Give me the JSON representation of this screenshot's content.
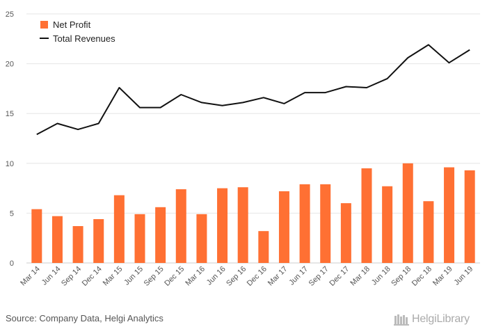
{
  "chart_data": {
    "type": "bar+line",
    "categories": [
      "Mar 14",
      "Jun 14",
      "Sep 14",
      "Dec 14",
      "Mar 15",
      "Jun 15",
      "Sep 15",
      "Dec 15",
      "Mar 16",
      "Jun 16",
      "Sep 16",
      "Dec 16",
      "Mar 17",
      "Jun 17",
      "Sep 17",
      "Dec 17",
      "Mar 18",
      "Jun 18",
      "Sep 18",
      "Dec 18",
      "Mar 19",
      "Jun 19"
    ],
    "series": [
      {
        "name": "Net Profit",
        "type": "bar",
        "color": "#ff7033",
        "values": [
          5.4,
          4.7,
          3.7,
          4.4,
          6.8,
          4.9,
          5.6,
          7.4,
          4.9,
          7.5,
          7.6,
          3.2,
          7.2,
          7.9,
          7.9,
          6.0,
          9.5,
          7.7,
          10.0,
          6.2,
          9.6,
          9.3
        ]
      },
      {
        "name": "Total Revenues",
        "type": "line",
        "color": "#111111",
        "values": [
          12.9,
          14.0,
          13.4,
          14.0,
          17.6,
          15.6,
          15.6,
          16.9,
          16.1,
          15.8,
          16.1,
          16.6,
          16.0,
          17.1,
          17.1,
          17.7,
          17.6,
          18.5,
          20.6,
          21.9,
          20.1,
          21.4
        ]
      }
    ],
    "ylim": [
      0,
      25
    ],
    "yticks": [
      0,
      5,
      10,
      15,
      20,
      25
    ],
    "legend": [
      "Net Profit",
      "Total Revenues"
    ],
    "legend_position": "top-left",
    "grid": true
  },
  "footer": {
    "source": "Source: Company Data, Helgi Analytics",
    "logo_text": "HelgiLibrary"
  }
}
